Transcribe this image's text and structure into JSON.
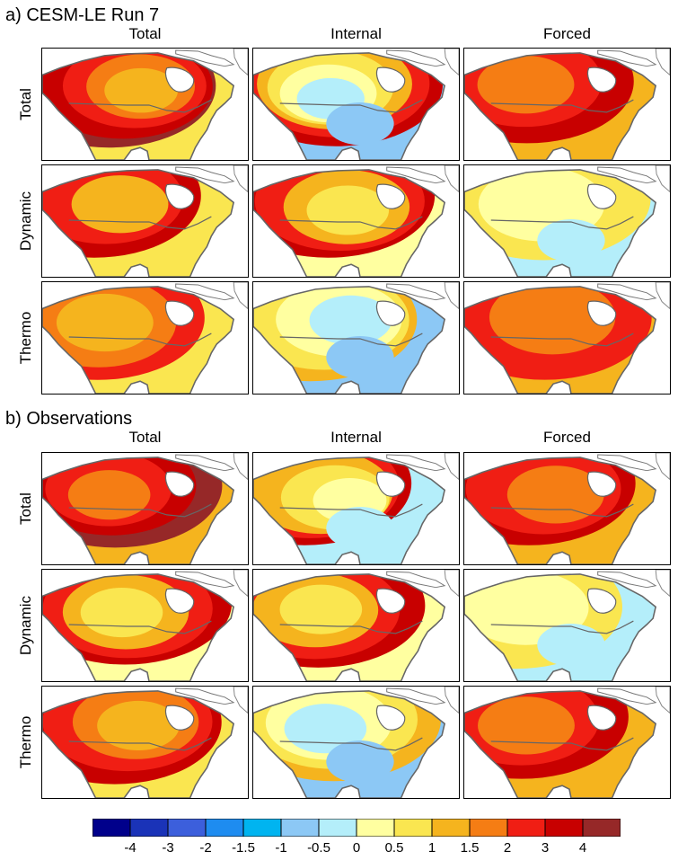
{
  "section_a": {
    "title": "a) CESM-LE Run 7"
  },
  "section_b": {
    "title": "b) Observations"
  },
  "columns": [
    "Total",
    "Internal",
    "Forced"
  ],
  "rows": [
    "Total",
    "Dynamic",
    "Thermo"
  ],
  "chart_data": {
    "type": "heatmap",
    "description": "Temperature trend maps over North America",
    "sections": [
      {
        "name": "a) CESM-LE Run 7",
        "panels": [
          {
            "row": "Total",
            "col": "Total",
            "levels": [
              4,
              3,
              2,
              1.5,
              1,
              0.5
            ]
          },
          {
            "row": "Total",
            "col": "Internal",
            "levels": [
              3,
              2,
              1,
              0.5,
              0,
              -0.5,
              -1
            ]
          },
          {
            "row": "Total",
            "col": "Forced",
            "levels": [
              3,
              2,
              1.5,
              1
            ]
          },
          {
            "row": "Dynamic",
            "col": "Total",
            "levels": [
              3,
              2,
              1,
              0.5
            ]
          },
          {
            "row": "Dynamic",
            "col": "Internal",
            "levels": [
              3,
              2,
              1,
              0.5,
              0
            ]
          },
          {
            "row": "Dynamic",
            "col": "Forced",
            "levels": [
              0.5,
              0,
              -0.5
            ]
          },
          {
            "row": "Thermo",
            "col": "Total",
            "levels": [
              2,
              1.5,
              1,
              0.5
            ]
          },
          {
            "row": "Thermo",
            "col": "Internal",
            "levels": [
              1,
              0.5,
              0,
              -0.5,
              -1
            ]
          },
          {
            "row": "Thermo",
            "col": "Forced",
            "levels": [
              2,
              1.5,
              1
            ]
          }
        ]
      },
      {
        "name": "b) Observations",
        "panels": [
          {
            "row": "Total",
            "col": "Total",
            "levels": [
              4,
              3,
              2,
              1.5,
              1
            ]
          },
          {
            "row": "Total",
            "col": "Internal",
            "levels": [
              3,
              2,
              1,
              0.5,
              0,
              -0.5
            ]
          },
          {
            "row": "Total",
            "col": "Forced",
            "levels": [
              3,
              2,
              1.5,
              1
            ]
          },
          {
            "row": "Dynamic",
            "col": "Total",
            "levels": [
              3,
              2,
              1,
              0.5,
              0
            ]
          },
          {
            "row": "Dynamic",
            "col": "Internal",
            "levels": [
              3,
              2,
              1,
              0.5,
              0
            ]
          },
          {
            "row": "Dynamic",
            "col": "Forced",
            "levels": [
              0.5,
              0,
              -0.5
            ]
          },
          {
            "row": "Thermo",
            "col": "Total",
            "levels": [
              3,
              2,
              1.5,
              1,
              0.5
            ]
          },
          {
            "row": "Thermo",
            "col": "Internal",
            "levels": [
              1,
              0.5,
              0,
              -0.5,
              -1
            ]
          },
          {
            "row": "Thermo",
            "col": "Forced",
            "levels": [
              3,
              2,
              1.5,
              1
            ]
          }
        ]
      }
    ],
    "colorbar": {
      "tick_labels": [
        "-4",
        "-3",
        "-2",
        "-1.5",
        "-1",
        "-0.5",
        "0",
        "0.5",
        "1",
        "1.5",
        "2",
        "3",
        "4"
      ],
      "colors": [
        "#00008b",
        "#1a33b8",
        "#3c5fdc",
        "#1e8cf0",
        "#00b4f0",
        "#8cc8f5",
        "#b4eefa",
        "#ffffa0",
        "#fae650",
        "#f5b41e",
        "#f57d14",
        "#f01e14",
        "#c80000",
        "#962828"
      ]
    }
  }
}
